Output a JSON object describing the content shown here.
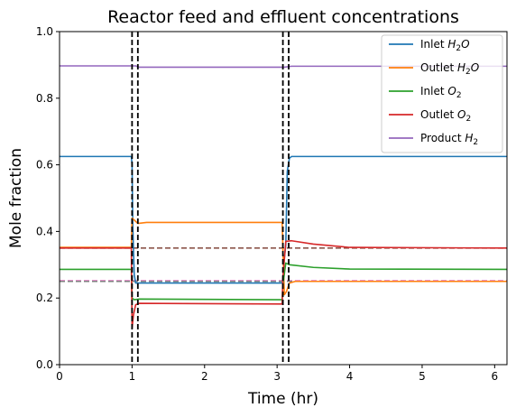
{
  "chart_data": {
    "type": "line",
    "title": "Reactor feed and effluent concentrations",
    "xlabel": "Time (hr)",
    "ylabel": "Mole fraction",
    "xlim": [
      0,
      6.17
    ],
    "ylim": [
      0.0,
      1.0
    ],
    "xticks": [
      "0",
      "1",
      "2",
      "3",
      "4",
      "5",
      "6"
    ],
    "yticks": [
      "0.0",
      "0.2",
      "0.4",
      "0.6",
      "0.8",
      "1.0"
    ],
    "grid": false,
    "legend_position": "top-right",
    "series": [
      {
        "name": "Inlet H2O",
        "legend_base": "Inlet ",
        "legend_sym": "H",
        "legend_sub": "2",
        "legend_tail": "O",
        "color": "#1f77b4",
        "points": [
          [
            0,
            0.625
          ],
          [
            0.99,
            0.625
          ],
          [
            1.0,
            0.6
          ],
          [
            1.01,
            0.42
          ],
          [
            1.03,
            0.27
          ],
          [
            1.05,
            0.245
          ],
          [
            1.1,
            0.245
          ],
          [
            3.08,
            0.245
          ],
          [
            3.09,
            0.3
          ],
          [
            3.12,
            0.36
          ],
          [
            3.14,
            0.58
          ],
          [
            3.17,
            0.62
          ],
          [
            3.2,
            0.625
          ],
          [
            6.17,
            0.625
          ]
        ]
      },
      {
        "name": "Outlet H2O",
        "legend_base": "Outlet ",
        "legend_sym": "H",
        "legend_sub": "2",
        "legend_tail": "O",
        "color": "#ff7f0e",
        "points": [
          [
            0,
            0.352
          ],
          [
            0.99,
            0.352
          ],
          [
            1.0,
            0.44
          ],
          [
            1.04,
            0.432
          ],
          [
            1.08,
            0.424
          ],
          [
            1.2,
            0.427
          ],
          [
            3.07,
            0.427
          ],
          [
            3.08,
            0.35
          ],
          [
            3.1,
            0.21
          ],
          [
            3.13,
            0.22
          ],
          [
            3.17,
            0.245
          ],
          [
            3.25,
            0.25
          ],
          [
            6.17,
            0.25
          ]
        ]
      },
      {
        "name": "Inlet O2",
        "legend_base": "Inlet ",
        "legend_sym": "O",
        "legend_sub": "2",
        "legend_tail": "",
        "color": "#2ca02c",
        "points": [
          [
            0,
            0.286
          ],
          [
            0.99,
            0.286
          ],
          [
            1.0,
            0.2
          ],
          [
            1.03,
            0.195
          ],
          [
            1.1,
            0.197
          ],
          [
            3.07,
            0.195
          ],
          [
            3.08,
            0.24
          ],
          [
            3.12,
            0.305
          ],
          [
            3.17,
            0.3
          ],
          [
            3.5,
            0.292
          ],
          [
            4.0,
            0.287
          ],
          [
            6.17,
            0.286
          ]
        ]
      },
      {
        "name": "Outlet O2",
        "legend_base": "Outlet ",
        "legend_sym": "O",
        "legend_sub": "2",
        "legend_tail": "",
        "color": "#d62728",
        "points": [
          [
            0,
            0.35
          ],
          [
            0.99,
            0.35
          ],
          [
            1.0,
            0.11
          ],
          [
            1.02,
            0.15
          ],
          [
            1.05,
            0.18
          ],
          [
            1.1,
            0.184
          ],
          [
            3.07,
            0.182
          ],
          [
            3.08,
            0.26
          ],
          [
            3.12,
            0.37
          ],
          [
            3.2,
            0.372
          ],
          [
            3.5,
            0.362
          ],
          [
            4.0,
            0.352
          ],
          [
            6.17,
            0.35
          ]
        ]
      },
      {
        "name": "Product H2",
        "legend_base": "Product ",
        "legend_sym": "H",
        "legend_sub": "2",
        "legend_tail": "",
        "color": "#9467bd",
        "points": [
          [
            0,
            0.897
          ],
          [
            1.05,
            0.897
          ],
          [
            1.1,
            0.893
          ],
          [
            3.1,
            0.893
          ],
          [
            3.2,
            0.896
          ],
          [
            6.17,
            0.896
          ]
        ]
      }
    ],
    "reference_lines": [
      {
        "value": 0.35,
        "color": "#8c564b",
        "style": "dashed"
      },
      {
        "value": 0.252,
        "color": "#e377c2",
        "style": "dashed"
      },
      {
        "value": 0.25,
        "color": "#7f7f7f",
        "style": "dashed"
      }
    ],
    "vertical_markers": [
      {
        "x": 1.0,
        "color": "#000000",
        "style": "dashed"
      },
      {
        "x": 1.08,
        "color": "#000000",
        "style": "dashed"
      },
      {
        "x": 3.08,
        "color": "#000000",
        "style": "dashed"
      },
      {
        "x": 3.16,
        "color": "#000000",
        "style": "dashed"
      }
    ]
  }
}
